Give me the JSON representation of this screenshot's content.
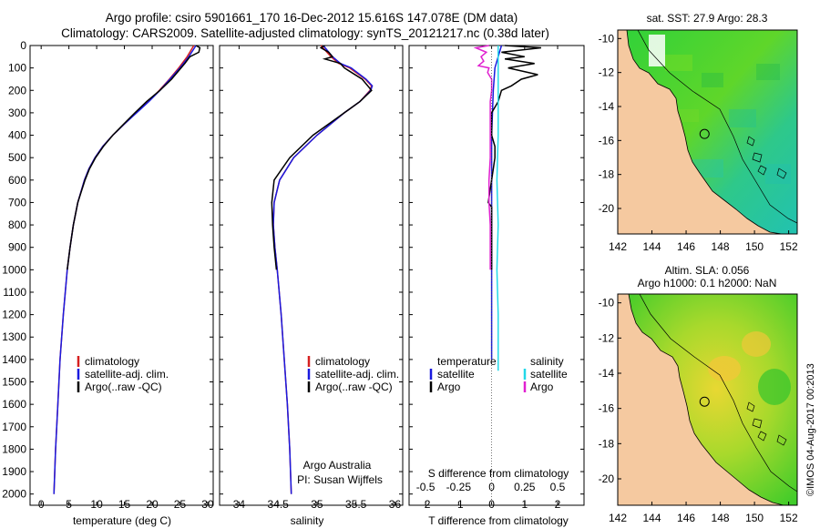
{
  "figure": {
    "title_line1": "Argo profile: csiro 5901661_170 16-Dec-2012 15.616S 147.078E (DM data)",
    "title_line2": "Climatology: CARS2009. Satellite-adjusted climatology: synTS_20121217.nc (0.38d later)",
    "colors": {
      "climatology": "#d62020",
      "satellite": "#1a1adf",
      "argo": "#000000",
      "satellite_salinity": "#22d8e8",
      "argo_salinity_diff": "#e020d0",
      "land": "#f5c9a0"
    }
  },
  "chart_data": [
    {
      "id": "temperature",
      "type": "line",
      "xlabel": "temperature (deg C)",
      "ylabel": "depth",
      "xlim": [
        -2,
        31
      ],
      "ylim": [
        0,
        2050
      ],
      "xticks": [
        0,
        5,
        10,
        15,
        20,
        25,
        30
      ],
      "yticks": [
        0,
        100,
        200,
        300,
        400,
        500,
        600,
        700,
        800,
        900,
        1000,
        1100,
        1200,
        1300,
        1400,
        1500,
        1600,
        1700,
        1800,
        1900,
        2000
      ],
      "legend": [
        "climatology",
        "satellite-adj. clim.",
        "Argo(..raw -QC)"
      ],
      "series": [
        {
          "name": "climatology",
          "depth": [
            0,
            50,
            100,
            150,
            200,
            250,
            300,
            350,
            400,
            450,
            500,
            550,
            600,
            700,
            800,
            900,
            1000,
            1200,
            1400,
            1600,
            1800,
            2000
          ],
          "values": [
            27.5,
            26.3,
            24.8,
            23.1,
            21.3,
            19.3,
            17.1,
            15.0,
            12.9,
            11.1,
            9.7,
            8.6,
            7.8,
            6.6,
            5.8,
            5.2,
            4.7,
            4.0,
            3.4,
            3.0,
            2.6,
            2.3
          ]
        },
        {
          "name": "satellite-adj. clim.",
          "depth": [
            0,
            50,
            100,
            150,
            200,
            250,
            300,
            350,
            400,
            450,
            500,
            550,
            600,
            700,
            800,
            900,
            1000,
            1200,
            1400,
            1600,
            1800,
            2000
          ],
          "values": [
            27.9,
            26.6,
            25.0,
            23.2,
            21.4,
            19.4,
            17.2,
            15.0,
            12.9,
            11.1,
            9.7,
            8.6,
            7.8,
            6.6,
            5.8,
            5.2,
            4.7,
            4.0,
            3.4,
            3.0,
            2.6,
            2.3
          ]
        },
        {
          "name": "Argo(..raw -QC)",
          "depth": [
            0,
            10,
            30,
            50,
            80,
            100,
            150,
            200,
            250,
            300,
            350,
            400,
            450,
            500,
            550,
            600,
            700,
            800,
            900,
            1000
          ],
          "values": [
            27.9,
            28.6,
            28.4,
            26.8,
            25.9,
            25.2,
            23.5,
            21.4,
            19.0,
            16.9,
            14.9,
            12.9,
            11.2,
            9.8,
            8.7,
            7.9,
            6.6,
            5.8,
            5.2,
            4.7
          ]
        }
      ]
    },
    {
      "id": "salinity",
      "type": "line",
      "xlabel": "salinity",
      "xlim": [
        33.75,
        36.1
      ],
      "ylim": [
        0,
        2050
      ],
      "xticks": [
        34,
        34.5,
        35,
        35.5,
        36
      ],
      "legend": [
        "climatology",
        "satellite-adj. clim.",
        "Argo(..raw -QC)"
      ],
      "annotation_line1": "Argo Australia",
      "annotation_line2": "PI: Susan Wijffels",
      "series": [
        {
          "name": "climatology",
          "depth": [
            0,
            50,
            80,
            100,
            150,
            180,
            200,
            250,
            300,
            400,
            500,
            600,
            700,
            800,
            900,
            1000,
            1200,
            1400,
            1600,
            1800,
            2000
          ],
          "values": [
            35.05,
            35.18,
            35.28,
            35.42,
            35.62,
            35.7,
            35.68,
            35.55,
            35.35,
            35.0,
            34.7,
            34.52,
            34.45,
            34.44,
            34.46,
            34.49,
            34.54,
            34.58,
            34.62,
            34.65,
            34.67
          ]
        },
        {
          "name": "satellite-adj. clim.",
          "depth": [
            0,
            50,
            80,
            100,
            150,
            180,
            200,
            250,
            300,
            400,
            500,
            600,
            700,
            800,
            900,
            1000,
            1200,
            1400,
            1600,
            1800,
            2000
          ],
          "values": [
            35.08,
            35.2,
            35.3,
            35.44,
            35.63,
            35.71,
            35.69,
            35.55,
            35.35,
            35.0,
            34.7,
            34.52,
            34.45,
            34.44,
            34.46,
            34.49,
            34.54,
            34.58,
            34.62,
            34.65,
            34.67
          ]
        },
        {
          "name": "Argo(..raw -QC)",
          "depth": [
            0,
            10,
            30,
            50,
            60,
            80,
            100,
            150,
            200,
            250,
            300,
            400,
            500,
            600,
            700,
            800,
            900,
            1000
          ],
          "values": [
            35.1,
            35.05,
            35.15,
            35.2,
            35.1,
            35.3,
            35.35,
            35.58,
            35.7,
            35.55,
            35.35,
            34.95,
            34.65,
            34.45,
            34.42,
            34.43,
            34.45,
            34.48
          ]
        }
      ]
    },
    {
      "id": "difference",
      "type": "line",
      "xlabel": "T difference from climatology",
      "xlabel_top": "S difference from climatology",
      "xlim": [
        -2.5,
        2.8
      ],
      "ylim": [
        0,
        2050
      ],
      "xticks": [
        -2,
        -1,
        0,
        1,
        2
      ],
      "sticks_labels": [
        "-0.5",
        "-0.25",
        "0",
        "0.25",
        "0.5"
      ],
      "legend_temperature_title": "temperature",
      "legend_salinity_title": "salinity",
      "legend_temperature": [
        "satellite",
        "Argo"
      ],
      "legend_salinity": [
        "satellite",
        "Argo"
      ],
      "series": [
        {
          "name": "T satellite",
          "depth": [
            0,
            50,
            100,
            200,
            400,
            600,
            800,
            1000,
            1400
          ],
          "values": [
            0.3,
            0.2,
            0.1,
            0.05,
            0.0,
            0.0,
            0.0,
            0.0,
            0.0
          ]
        },
        {
          "name": "T Argo",
          "depth": [
            0,
            10,
            30,
            50,
            60,
            80,
            100,
            130,
            150,
            180,
            200,
            250,
            300,
            350,
            400,
            450,
            500,
            600,
            700,
            720,
            800,
            900,
            1000
          ],
          "values": [
            0.4,
            1.5,
            0.3,
            1.0,
            0.4,
            1.3,
            0.5,
            1.4,
            0.9,
            0.6,
            0.3,
            0.2,
            0.0,
            0.0,
            0.0,
            0.1,
            0.1,
            0.0,
            -0.1,
            0.0,
            0.0,
            0.0,
            0.0
          ]
        },
        {
          "name": "S satellite",
          "depth": [
            0,
            50,
            100,
            200,
            400,
            600,
            800,
            1000,
            1200,
            1400,
            1450
          ],
          "values": [
            0.05,
            0.05,
            0.05,
            0.05,
            0.05,
            0.04,
            0.05,
            0.04,
            0.05,
            0.05,
            0.05
          ]
        },
        {
          "name": "S Argo",
          "depth": [
            0,
            10,
            30,
            50,
            70,
            90,
            100,
            120,
            150,
            200,
            250,
            300,
            400,
            500,
            600,
            700,
            800,
            900,
            1000
          ],
          "values": [
            -0.02,
            -0.12,
            -0.04,
            -0.08,
            -0.06,
            -0.1,
            -0.02,
            -0.03,
            0.0,
            0.0,
            -0.01,
            -0.01,
            -0.01,
            -0.01,
            -0.02,
            -0.02,
            -0.01,
            -0.01,
            -0.01
          ]
        }
      ]
    },
    {
      "id": "sst-map",
      "type": "heatmap",
      "title": "sat. SST: 27.9 Argo: 28.3",
      "xlim": [
        142,
        152.5
      ],
      "ylim": [
        -21.5,
        -9.5
      ],
      "xticks": [
        142,
        144,
        146,
        148,
        150,
        152
      ],
      "yticks": [
        -10,
        -12,
        -14,
        -16,
        -18,
        -20
      ],
      "marker": {
        "lon": 147.078,
        "lat": -15.616
      }
    },
    {
      "id": "sla-map",
      "type": "heatmap",
      "title_line1": "Altim. SLA: 0.056",
      "title_line2": "Argo h1000: 0.1 h2000: NaN",
      "xlim": [
        142,
        152.5
      ],
      "ylim": [
        -21.5,
        -9.5
      ],
      "xticks": [
        142,
        144,
        146,
        148,
        150,
        152
      ],
      "yticks": [
        -10,
        -12,
        -14,
        -16,
        -18,
        -20
      ],
      "marker": {
        "lon": 147.078,
        "lat": -15.616
      }
    }
  ],
  "footer": {
    "credit": "©IMOS 04-Aug-2017 00:2013"
  }
}
